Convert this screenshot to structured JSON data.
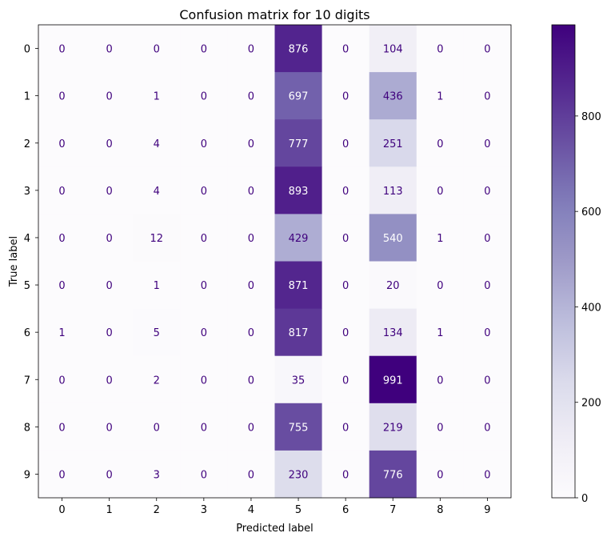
{
  "chart_data": {
    "type": "heatmap",
    "title": "Confusion matrix for 10 digits",
    "xlabel": "Predicted label",
    "ylabel": "True label",
    "x_categories": [
      "0",
      "1",
      "2",
      "3",
      "4",
      "5",
      "6",
      "7",
      "8",
      "9"
    ],
    "y_categories": [
      "0",
      "1",
      "2",
      "3",
      "4",
      "5",
      "6",
      "7",
      "8",
      "9"
    ],
    "values": [
      [
        0,
        0,
        0,
        0,
        0,
        876,
        0,
        104,
        0,
        0
      ],
      [
        0,
        0,
        1,
        0,
        0,
        697,
        0,
        436,
        1,
        0
      ],
      [
        0,
        0,
        4,
        0,
        0,
        777,
        0,
        251,
        0,
        0
      ],
      [
        0,
        0,
        4,
        0,
        0,
        893,
        0,
        113,
        0,
        0
      ],
      [
        0,
        0,
        12,
        0,
        0,
        429,
        0,
        540,
        1,
        0
      ],
      [
        0,
        0,
        1,
        0,
        0,
        871,
        0,
        20,
        0,
        0
      ],
      [
        1,
        0,
        5,
        0,
        0,
        817,
        0,
        134,
        1,
        0
      ],
      [
        0,
        0,
        2,
        0,
        0,
        35,
        0,
        991,
        0,
        0
      ],
      [
        0,
        0,
        0,
        0,
        0,
        755,
        0,
        219,
        0,
        0
      ],
      [
        0,
        0,
        3,
        0,
        0,
        230,
        0,
        776,
        0,
        0
      ]
    ],
    "colormap": "Purples",
    "vmin": 0,
    "vmax": 991,
    "colorbar_ticks": [
      0,
      200,
      400,
      600,
      800
    ],
    "grid": false
  }
}
